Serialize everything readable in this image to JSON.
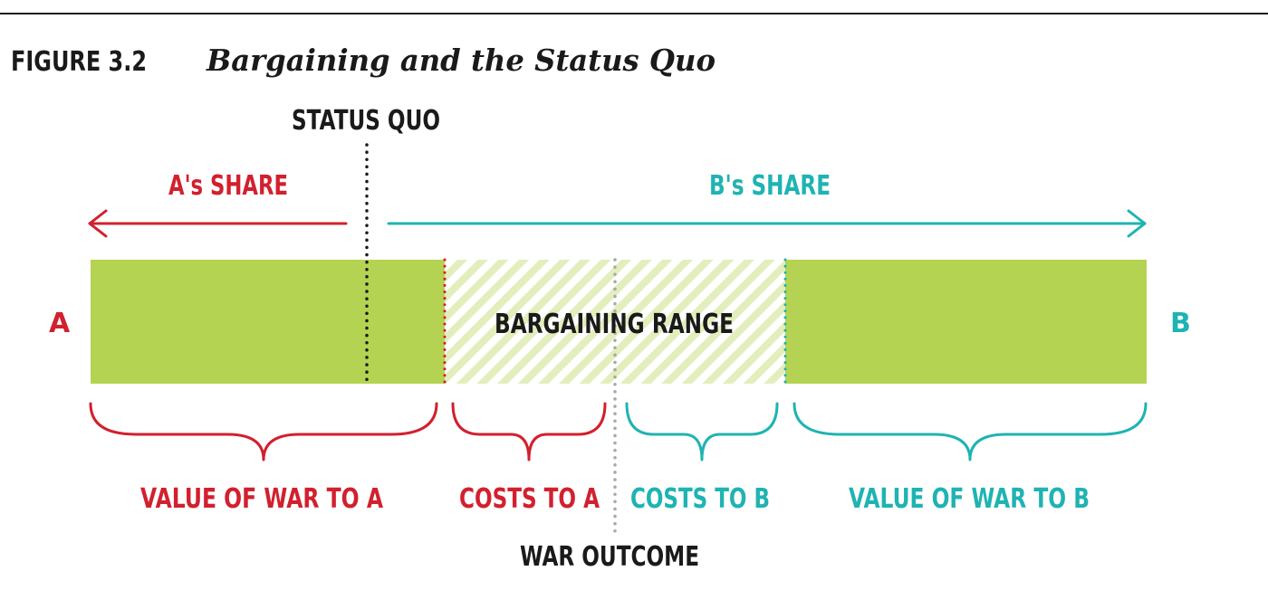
{
  "figure": {
    "number": "FIGURE 3.2",
    "title": "Bargaining and the Status Quo"
  },
  "labels": {
    "status_quo": "STATUS QUO",
    "a_share": "A's SHARE",
    "b_share": "B's SHARE",
    "end_a": "A",
    "end_b": "B",
    "bargaining_range": "BARGAINING RANGE",
    "value_war_a": "VALUE OF WAR TO A",
    "costs_a": "COSTS TO A",
    "costs_b": "COSTS TO B",
    "value_war_b": "VALUE OF WAR TO B",
    "war_outcome": "WAR OUTCOME"
  },
  "colors": {
    "red": "#d2202e",
    "teal": "#1fb3b3",
    "green": "#b5d353",
    "green_light": "#e3eebd",
    "ink": "#1a1a1a",
    "gray": "#a8a8a8"
  }
}
